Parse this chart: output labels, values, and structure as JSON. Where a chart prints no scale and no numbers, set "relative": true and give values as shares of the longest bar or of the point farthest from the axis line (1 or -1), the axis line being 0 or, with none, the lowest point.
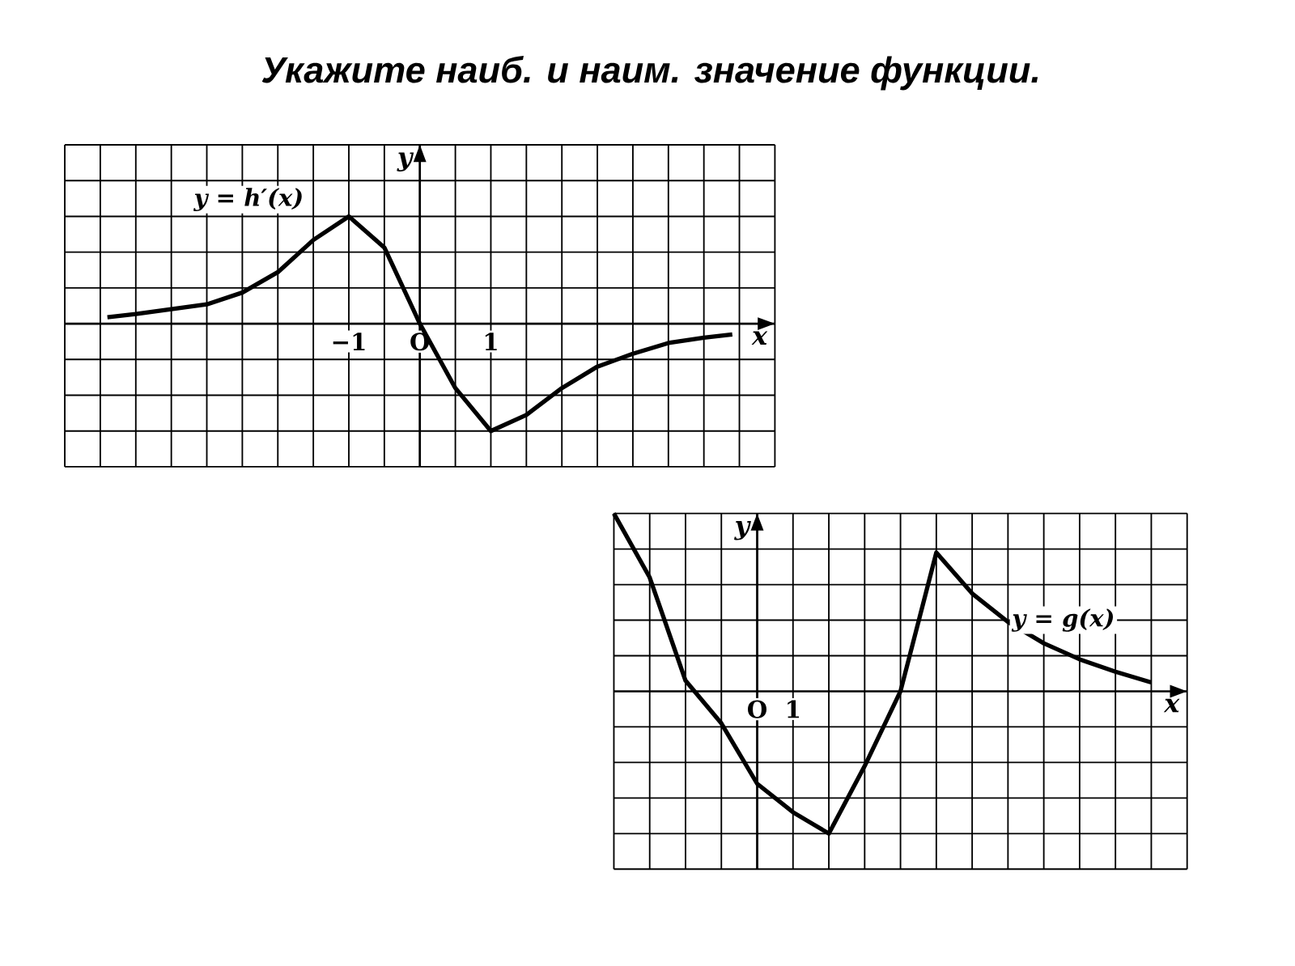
{
  "chart_data": [
    {
      "type": "line",
      "title": "Укажите наиб. и наим. значение функции.",
      "xlabel": "x",
      "ylabel": "y",
      "relative": true,
      "grid": true,
      "xlim": [
        -5,
        5
      ],
      "xticks": [
        {
          "value": -5,
          "label": null
        },
        {
          "value": -4.5,
          "label": null
        },
        {
          "value": -4,
          "label": null
        },
        {
          "value": -3.5,
          "label": null
        },
        {
          "value": -3,
          "label": null
        },
        {
          "value": -2.5,
          "label": null
        },
        {
          "value": -2,
          "label": null
        },
        {
          "value": -1.5,
          "label": null
        },
        {
          "value": -1,
          "label": "−1"
        },
        {
          "value": -0.5,
          "label": null
        },
        {
          "value": 0,
          "label": "O"
        },
        {
          "value": 0.5,
          "label": null
        },
        {
          "value": 1,
          "label": "1"
        },
        {
          "value": 1.5,
          "label": null
        },
        {
          "value": 2,
          "label": null
        },
        {
          "value": 2.5,
          "label": null
        },
        {
          "value": 3,
          "label": null
        },
        {
          "value": 3.5,
          "label": null
        },
        {
          "value": 4,
          "label": null
        },
        {
          "value": 4.5,
          "label": null
        },
        {
          "value": 5,
          "label": null
        }
      ],
      "x": [
        -4.4,
        -4,
        -3,
        -2.5,
        -2,
        -1.5,
        -1,
        -0.5,
        0,
        0.5,
        1,
        1.5,
        2,
        2.5,
        3,
        3.5,
        4,
        4.4
      ],
      "series": [
        {
          "color": "#000000",
          "values": [
            0.06,
            0.09,
            0.18,
            0.29,
            0.48,
            0.78,
            1,
            0.71,
            0,
            -0.6,
            -1,
            -0.85,
            -0.6,
            -0.4,
            -0.28,
            -0.18,
            -0.13,
            -0.1
          ]
        }
      ],
      "annotations": [
        "y = h′(x)"
      ]
    },
    {
      "type": "line",
      "xlabel": "x",
      "ylabel": "y",
      "relative": true,
      "grid": true,
      "categories": [
        null,
        null,
        null,
        null,
        "O",
        "1",
        null,
        null,
        null,
        null,
        null,
        null,
        null,
        null,
        null,
        null,
        null
      ],
      "series": [
        {
          "color": "#000000",
          "values": [
            1,
            0.64,
            0.06,
            -0.18,
            -0.52,
            -0.68,
            -0.8,
            -0.42,
            0,
            0.78,
            0.55,
            0.39,
            0.27,
            0.18,
            0.11,
            0.05,
            null
          ]
        }
      ],
      "annotations": [
        "y = g(x)"
      ]
    }
  ]
}
